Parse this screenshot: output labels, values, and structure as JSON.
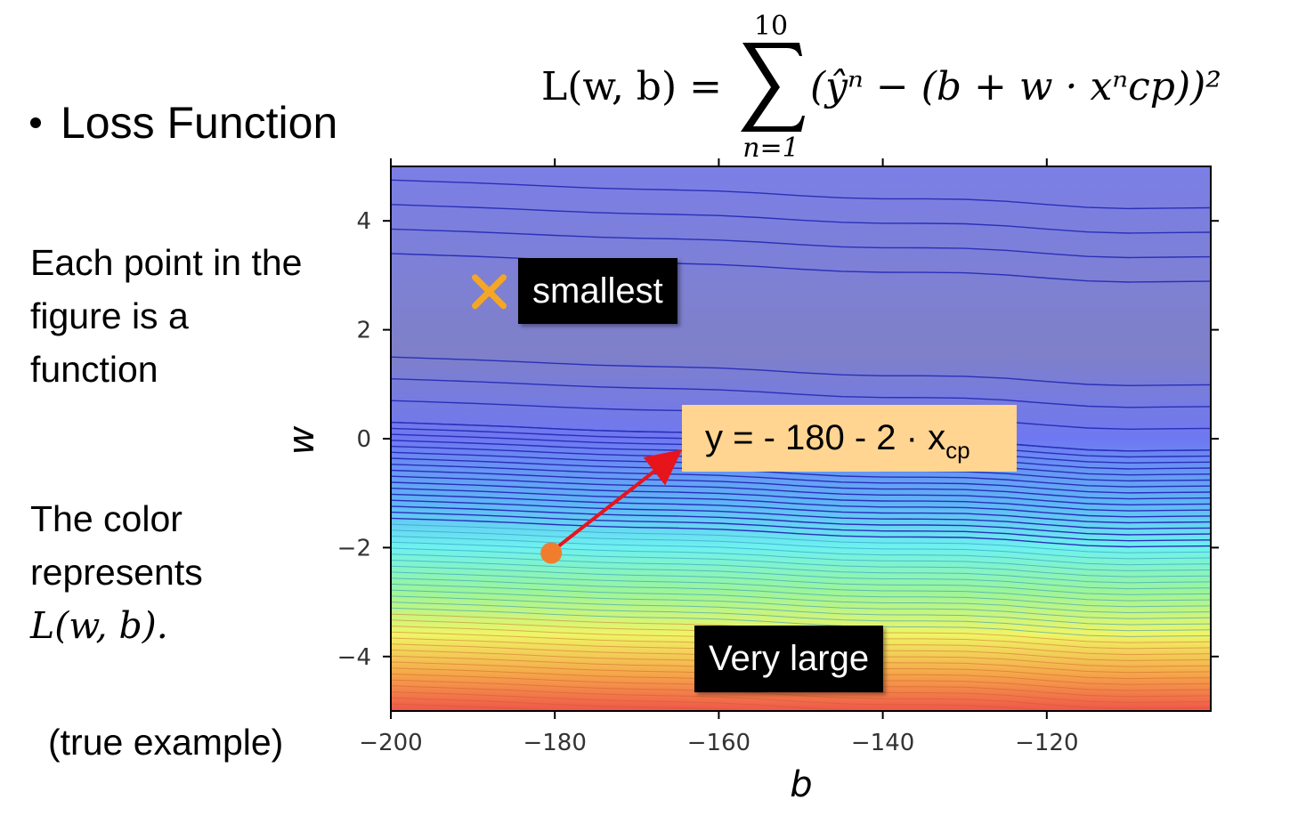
{
  "bullet": "Loss Function",
  "formula": {
    "lhs": "L(w, b) =",
    "sum_upper": "10",
    "sum_lower": "n=1",
    "body": "(ŷⁿ − (b + w · xⁿcp))²"
  },
  "desc1": "Each point in the figure is a function",
  "desc2_prefix": "The color represents",
  "desc2_math": "L(w, b).",
  "example": "(true example)",
  "callouts": {
    "smallest": "smallest",
    "very_large": "Very large",
    "equation_main": "y = - 180 - 2 · x",
    "equation_sub": "cp"
  },
  "colors": {
    "cross": "#f5a623",
    "point": "#f07d2e",
    "arrow": "#e8141c",
    "eq_box": "#ffd591"
  },
  "chart_data": {
    "type": "contour",
    "xlabel": "b",
    "ylabel": "w",
    "xlim": [
      -200,
      -100
    ],
    "ylim": [
      -5,
      5
    ],
    "x_ticks": [
      "−200",
      "−180",
      "−160",
      "−140",
      "−120"
    ],
    "x_tick_values": [
      -200,
      -180,
      -160,
      -140,
      -120
    ],
    "y_ticks": [
      "4",
      "2",
      "0",
      "−2",
      "−4"
    ],
    "y_tick_values": [
      4,
      2,
      0,
      -2,
      -4
    ],
    "colormap": "jet, reversed vertically (low loss = blue at top, high loss = red at bottom)",
    "minimum_marker": {
      "b": -188,
      "w": 2.7,
      "label": "smallest"
    },
    "sample_point": {
      "b": -180,
      "w": -2.1,
      "label": "y = - 180 - 2 · x_cp"
    },
    "max_region_label": "Very large"
  }
}
